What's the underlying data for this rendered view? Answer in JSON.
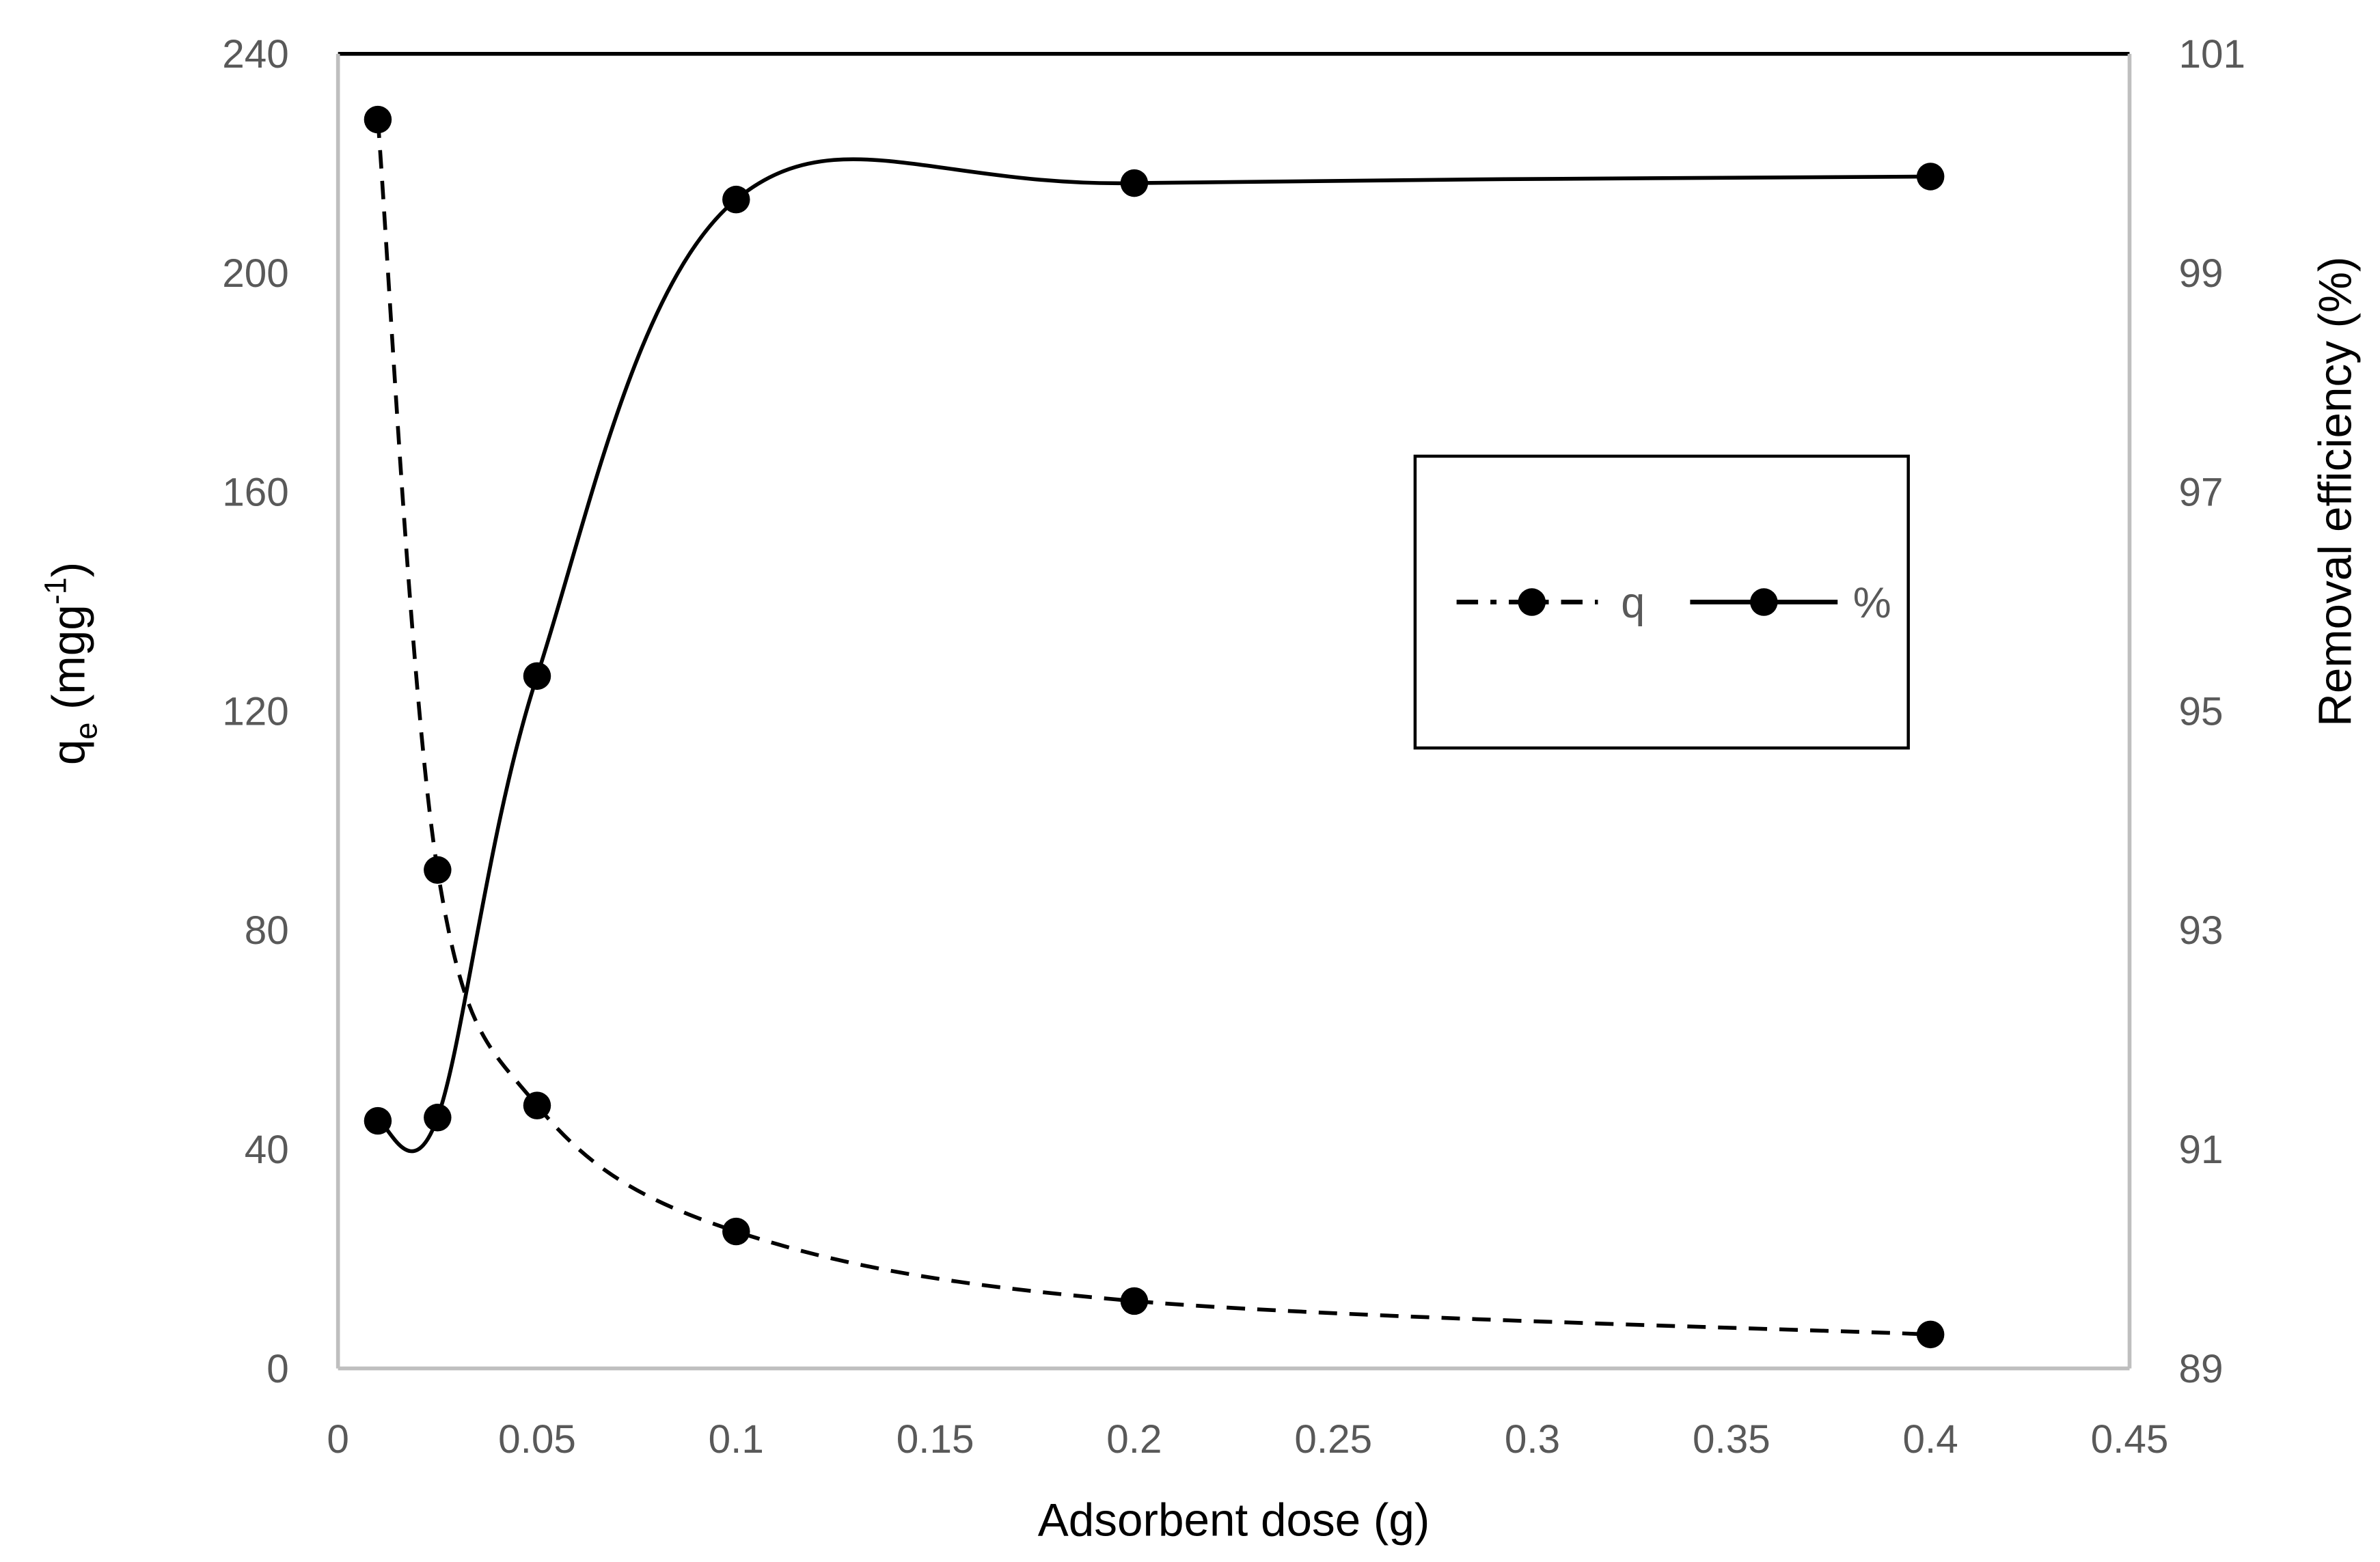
{
  "chart_data": {
    "type": "line",
    "title": "",
    "xlabel": "Adsorbent dose (g)",
    "ylabel": "qe (mgg-1)",
    "ylabel_main": "q",
    "ylabel_sub": "e",
    "ylabel_unit": "(mgg",
    "ylabel_sup": "-1",
    "ylabel_close": ")",
    "y2label": "Removal efficiency (%)",
    "xlim": [
      0,
      0.45
    ],
    "ylim": [
      0,
      240
    ],
    "y2lim": [
      89,
      101
    ],
    "x_ticks": [
      "0",
      "0.05",
      "0.1",
      "0.15",
      "0.2",
      "0.25",
      "0.3",
      "0.35",
      "0.4",
      "0.45"
    ],
    "x_tick_values": [
      0,
      0.05,
      0.1,
      0.15,
      0.2,
      0.25,
      0.3,
      0.35,
      0.4,
      0.45
    ],
    "y_ticks": [
      "0",
      "40",
      "80",
      "120",
      "160",
      "200",
      "240"
    ],
    "y_tick_values": [
      0,
      40,
      80,
      120,
      160,
      200,
      240
    ],
    "y2_ticks": [
      "89",
      "91",
      "93",
      "95",
      "97",
      "99",
      "101"
    ],
    "y2_tick_values": [
      89,
      91,
      93,
      95,
      97,
      99,
      101
    ],
    "grid": false,
    "legend_position": "inside-right",
    "x": [
      0.01,
      0.025,
      0.05,
      0.1,
      0.2,
      0.4
    ],
    "series": [
      {
        "name": "q",
        "axis": "left",
        "style": "dashed",
        "marker": "circle",
        "color": "#000000",
        "values": [
          228,
          91,
          48,
          25,
          12.3,
          6.2
        ]
      },
      {
        "name": "%",
        "axis": "right",
        "style": "solid",
        "marker": "circle",
        "color": "#000000",
        "values": [
          91.26,
          91.29,
          95.32,
          99.67,
          99.82,
          99.88
        ]
      }
    ]
  },
  "legend": {
    "items": [
      {
        "label": "q"
      },
      {
        "label": "%"
      }
    ]
  },
  "colors": {
    "axis_line": "#bfbfbf",
    "top_border": "#000000",
    "tick_text": "#595959",
    "series": "#000000"
  }
}
